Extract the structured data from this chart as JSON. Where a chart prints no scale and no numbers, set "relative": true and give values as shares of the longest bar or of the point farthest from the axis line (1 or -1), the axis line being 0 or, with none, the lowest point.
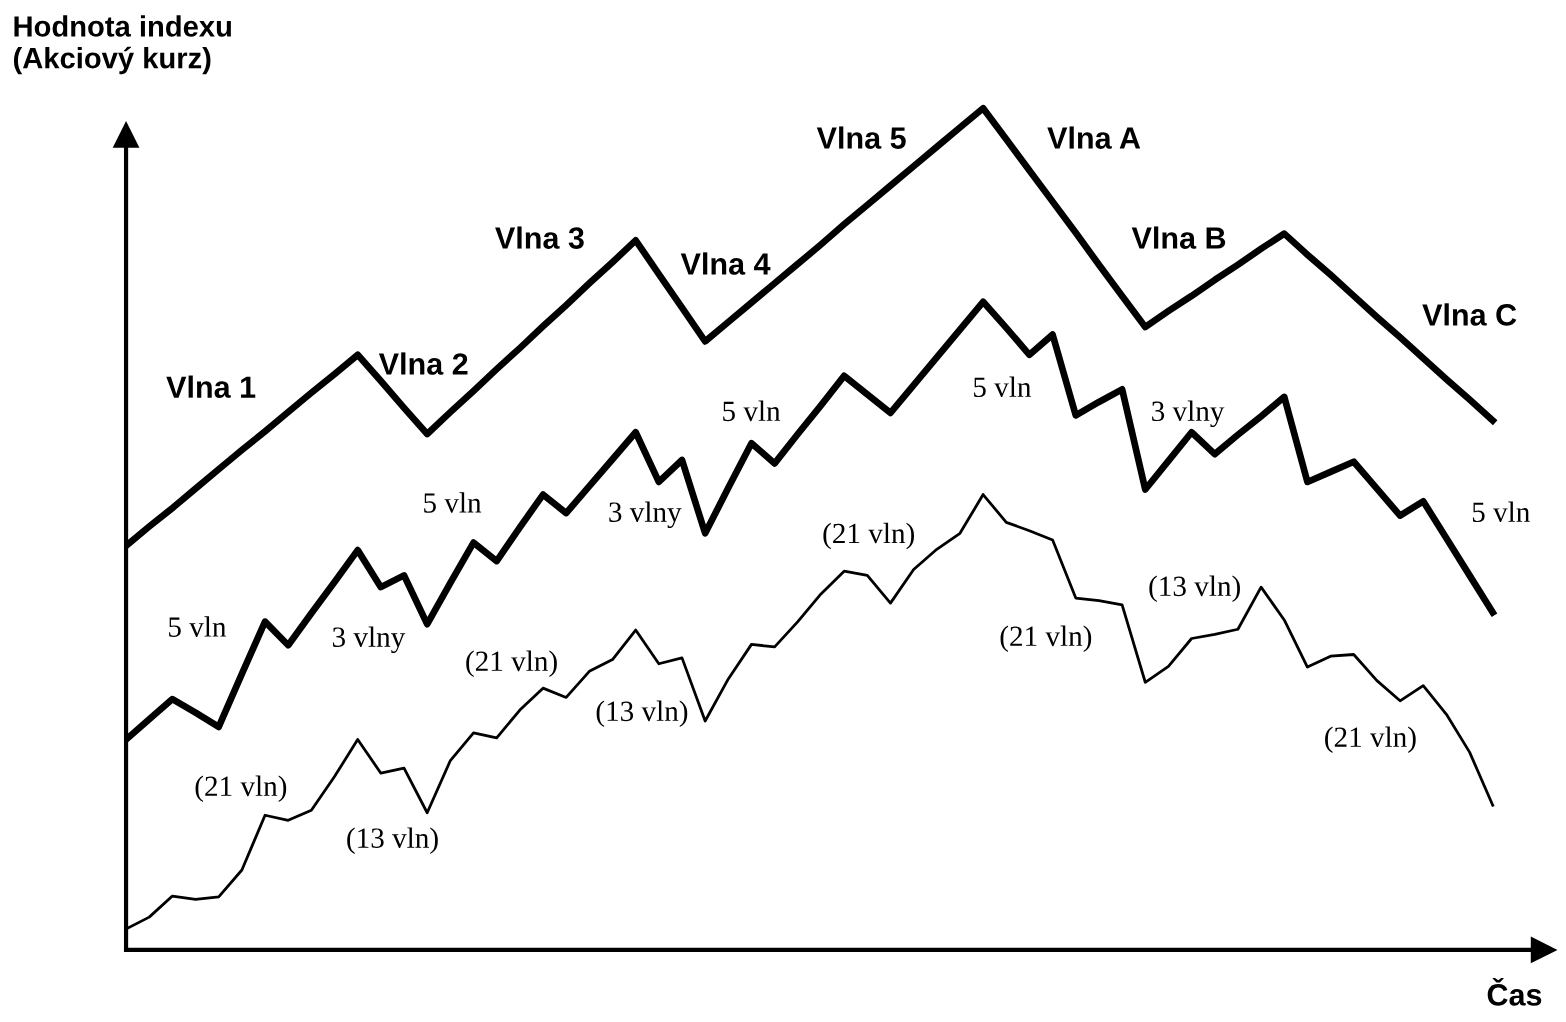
{
  "chart_data": {
    "type": "line",
    "relative": true,
    "xlabel": "Čas",
    "ylabel": "Hodnota indexu\n(Akciový kurz)",
    "marker": "none",
    "line_style": "solid",
    "categories": [
      null,
      null,
      null,
      null,
      null,
      null,
      null,
      null,
      null,
      null,
      null,
      null,
      null,
      null,
      null,
      null,
      null,
      null,
      null,
      null,
      null,
      null,
      null,
      null,
      null,
      null,
      null,
      null,
      null,
      null,
      null,
      null,
      null,
      null,
      null,
      null,
      null,
      null,
      null,
      null,
      null,
      null,
      null,
      null,
      null,
      null,
      null,
      null,
      null,
      null,
      null,
      null,
      null,
      null,
      null,
      null,
      null,
      null,
      null,
      null
    ],
    "series": [
      {
        "color": "#000000",
        "values": [
          0.48,
          0.503,
          0.525,
          0.548,
          0.571,
          0.594,
          0.616,
          0.639,
          0.662,
          0.684,
          0.707,
          0.676,
          0.644,
          0.613,
          0.639,
          0.664,
          0.69,
          0.715,
          0.741,
          0.766,
          0.792,
          0.817,
          0.843,
          0.803,
          0.763,
          0.723,
          0.746,
          0.769,
          0.792,
          0.815,
          0.838,
          0.862,
          0.885,
          0.908,
          0.931,
          0.954,
          0.977,
          1.0,
          0.963,
          0.926,
          0.889,
          0.852,
          0.814,
          0.777,
          0.74,
          0.759,
          0.777,
          0.796,
          0.814,
          0.833,
          0.851,
          0.826,
          0.802,
          0.777,
          0.752,
          0.728,
          0.703,
          0.678,
          0.654,
          0.629
        ]
      },
      {
        "color": "#000000",
        "values": [
          0.25,
          0.274,
          0.298,
          0.282,
          0.265,
          0.328,
          0.39,
          0.362,
          0.4,
          0.437,
          0.475,
          0.431,
          0.445,
          0.387,
          0.436,
          0.484,
          0.462,
          0.502,
          0.541,
          0.519,
          0.551,
          0.583,
          0.615,
          0.556,
          0.582,
          0.495,
          0.549,
          0.602,
          0.578,
          0.613,
          0.647,
          0.682,
          0.66,
          0.638,
          0.671,
          0.704,
          0.737,
          0.77,
          0.739,
          0.707,
          0.731,
          0.635,
          0.651,
          0.666,
          0.547,
          0.581,
          0.615,
          0.589,
          0.612,
          0.634,
          0.657,
          0.556,
          0.568,
          0.58,
          0.548,
          0.516,
          0.533,
          0.489,
          0.445,
          0.401
        ]
      },
      {
        "color": "#000000",
        "values": [
          0.025,
          0.039,
          0.064,
          0.06,
          0.063,
          0.095,
          0.16,
          0.154,
          0.166,
          0.206,
          0.25,
          0.21,
          0.216,
          0.163,
          0.225,
          0.258,
          0.252,
          0.285,
          0.311,
          0.3,
          0.331,
          0.345,
          0.38,
          0.34,
          0.347,
          0.272,
          0.322,
          0.363,
          0.36,
          0.39,
          0.423,
          0.45,
          0.445,
          0.412,
          0.452,
          0.476,
          0.495,
          0.541,
          0.508,
          0.498,
          0.487,
          0.418,
          0.415,
          0.41,
          0.318,
          0.337,
          0.37,
          0.375,
          0.381,
          0.431,
          0.392,
          0.336,
          0.349,
          0.351,
          0.32,
          0.296,
          0.314,
          0.28,
          0.235,
          0.172
        ]
      }
    ],
    "annotations": [
      "Vlna 1",
      "Vlna 2",
      "Vlna 3",
      "Vlna 4",
      "Vlna 5",
      "Vlna A",
      "Vlna B",
      "Vlna C",
      "5 vln",
      "3 vlny",
      "5 vln",
      "3 vlny",
      "5 vln",
      "5 vln",
      "3 vlny",
      "5 vln",
      "(21 vln)",
      "(13 vln)",
      "(21 vln)",
      "(13 vln)",
      "(21 vln)",
      "(21 vln)",
      "(13 vln)",
      "(21 vln)"
    ]
  }
}
